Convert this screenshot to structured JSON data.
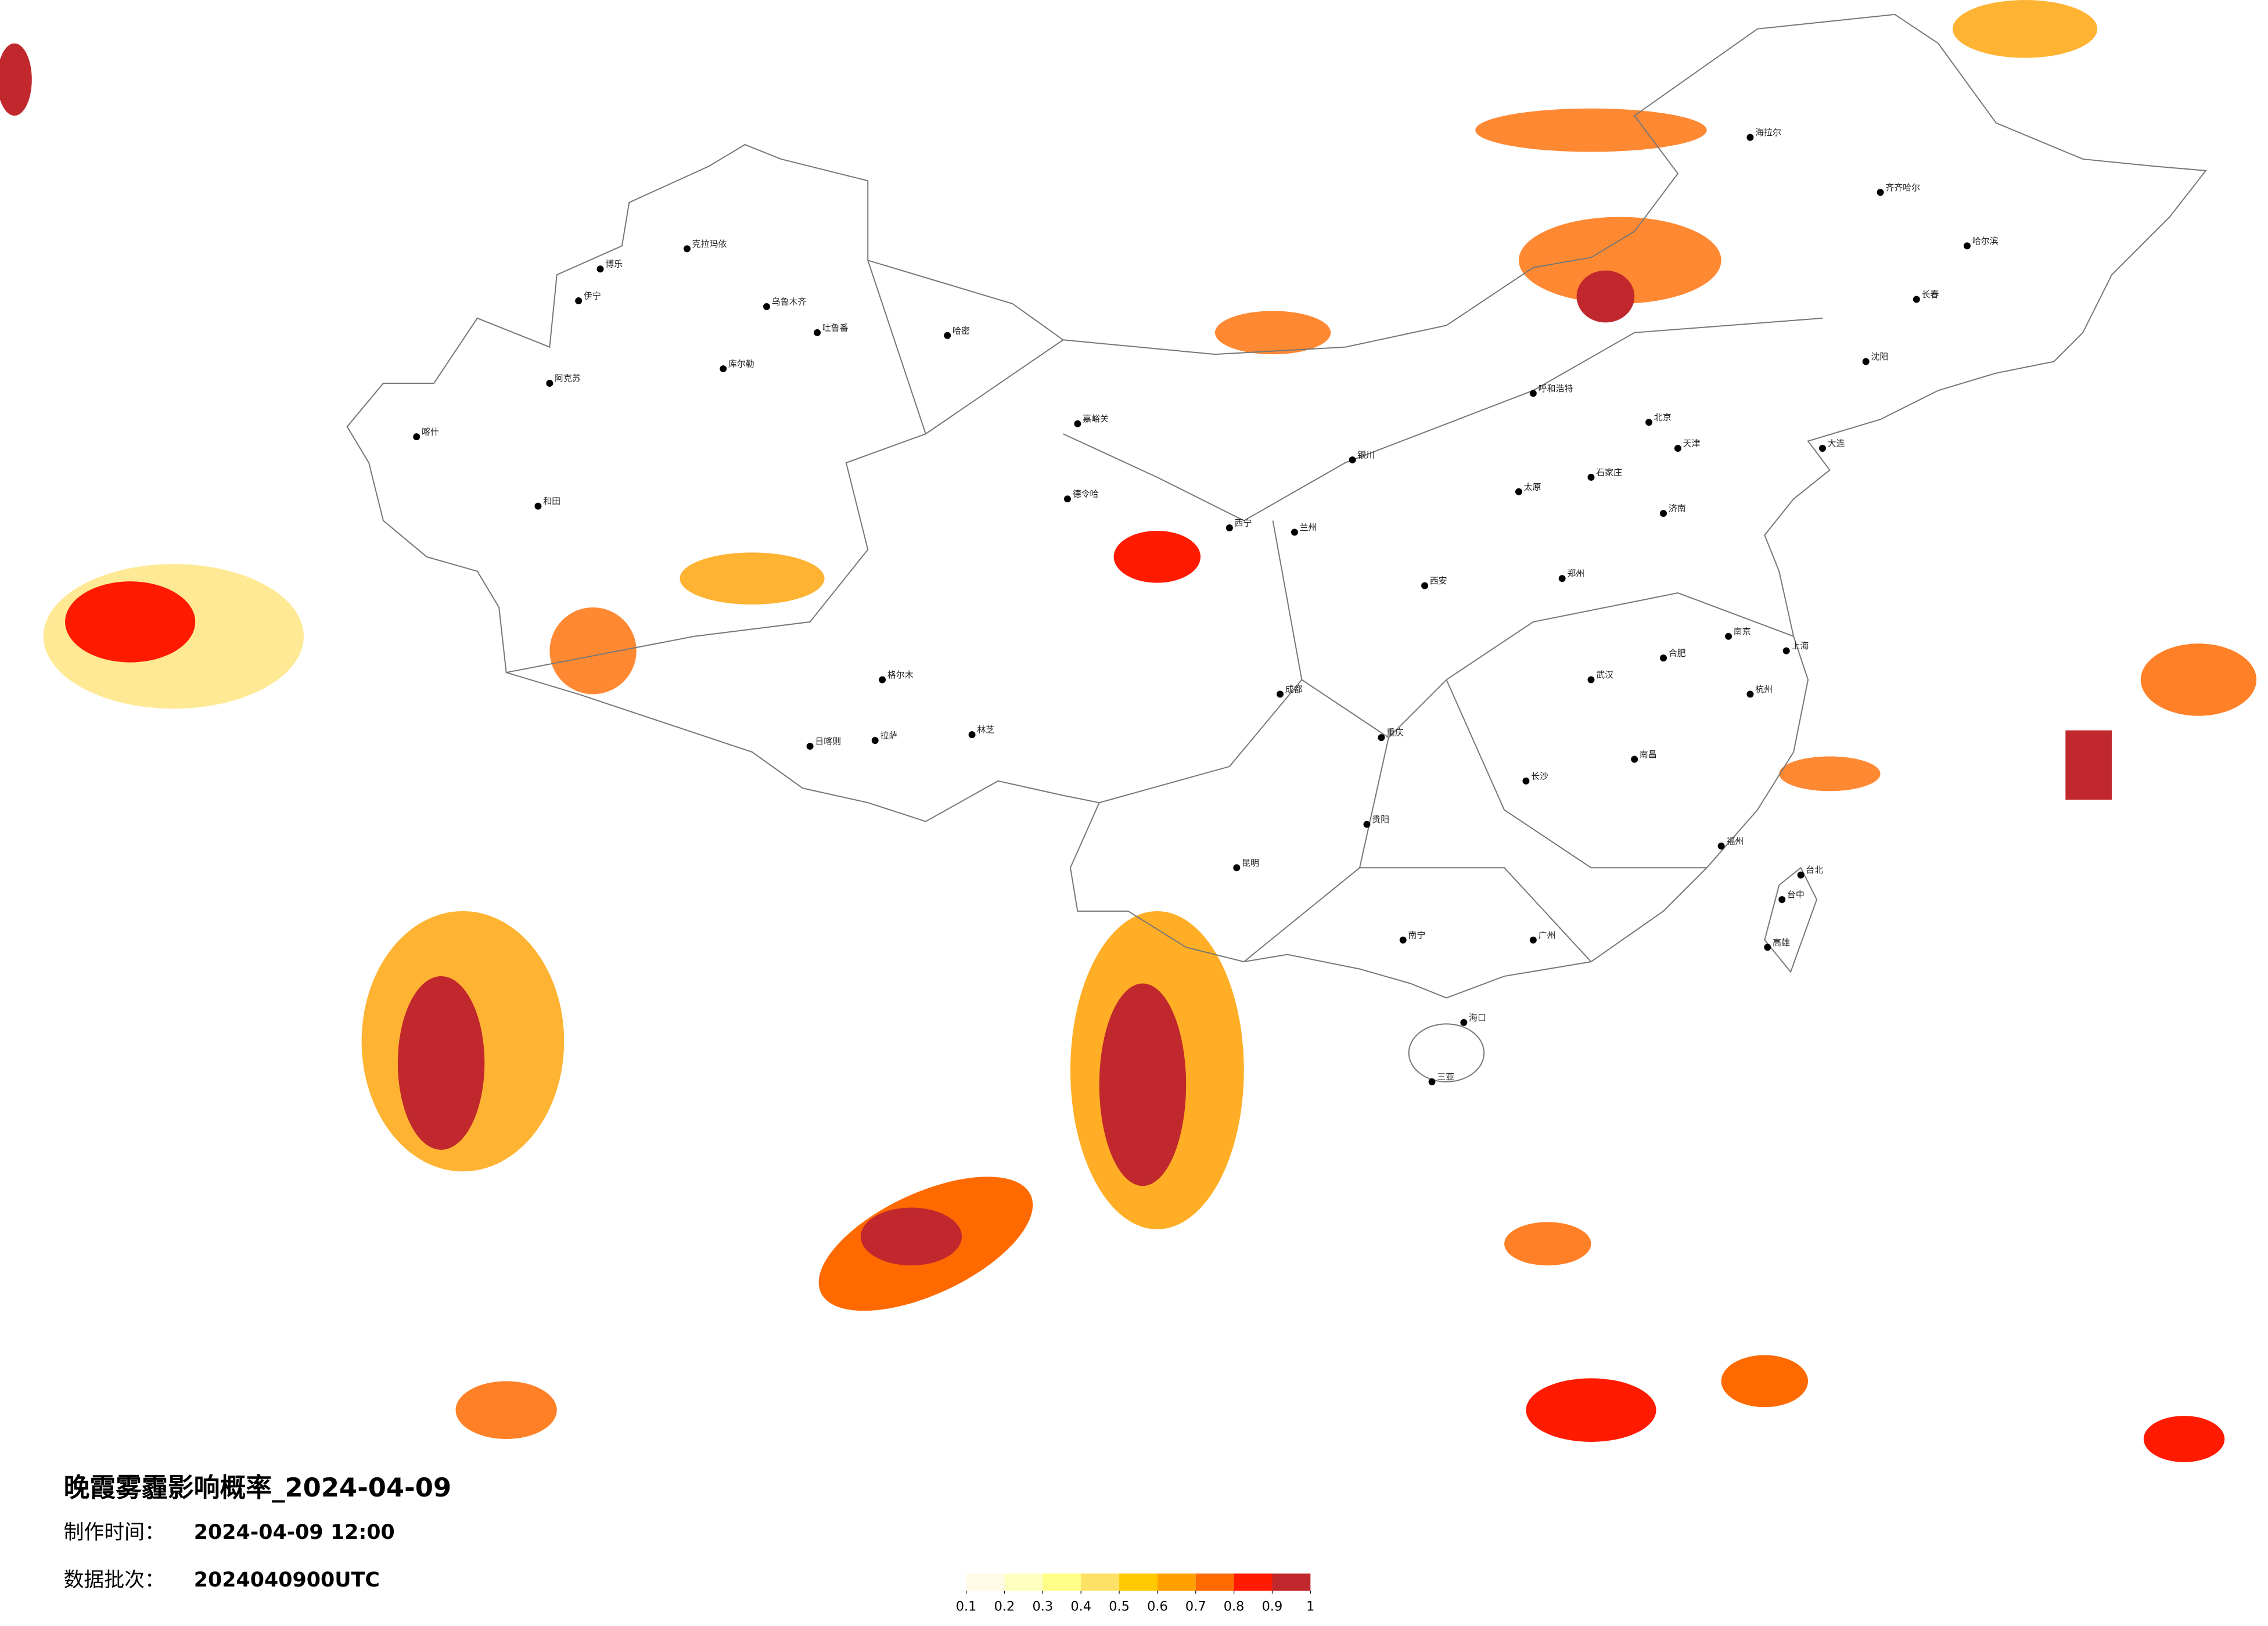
{
  "header": {
    "title": "晚霞雾霾影响概率_2024-04-09",
    "made_label": "制作时间：",
    "made_value": "2024-04-09 12:00",
    "batch_label": "数据批次：",
    "batch_value": "2024040900UTC"
  },
  "legend": {
    "ticks": [
      0.1,
      0.2,
      0.3,
      0.4,
      0.5,
      0.6,
      0.7,
      0.8,
      0.9,
      1
    ],
    "colors": [
      "#fffbe6",
      "#ffffc0",
      "#ffff88",
      "#ffe066",
      "#ffc800",
      "#ffa000",
      "#ff6a00",
      "#ff1a00",
      "#c0282d"
    ]
  },
  "cities": [
    "克拉玛依",
    "乌鲁木齐",
    "吐鲁番",
    "哈密",
    "库尔勒",
    "阿克苏",
    "喀什",
    "和田",
    "伊宁",
    "博乐",
    "嘉峪关",
    "德令哈",
    "格尔木",
    "拉萨",
    "日喀则",
    "林芝",
    "呼和浩特",
    "北京",
    "天津",
    "石家庄",
    "太原",
    "济南",
    "郑州",
    "西安",
    "兰州",
    "银川",
    "西宁",
    "成都",
    "重庆",
    "贵阳",
    "昆明",
    "南宁",
    "广州",
    "长沙",
    "武汉",
    "南昌",
    "合肥",
    "南京",
    "上海",
    "杭州",
    "福州",
    "台北",
    "台中",
    "高雄",
    "海口",
    "三亚",
    "哈尔滨",
    "长春",
    "沈阳",
    "大连",
    "齐齐哈尔",
    "海拉尔"
  ]
}
